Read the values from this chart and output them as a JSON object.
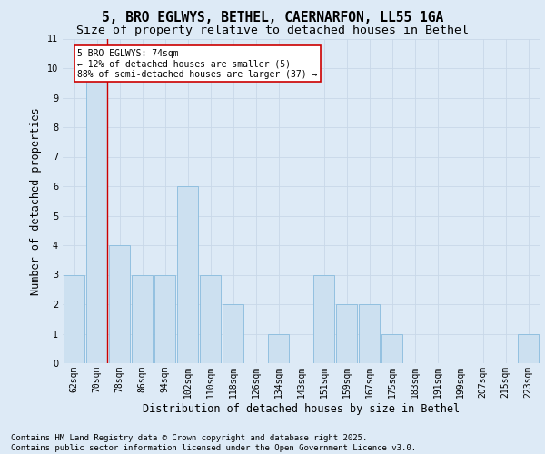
{
  "title_line1": "5, BRO EGLWYS, BETHEL, CAERNARFON, LL55 1GA",
  "title_line2": "Size of property relative to detached houses in Bethel",
  "xlabel": "Distribution of detached houses by size in Bethel",
  "ylabel": "Number of detached properties",
  "categories": [
    "62sqm",
    "70sqm",
    "78sqm",
    "86sqm",
    "94sqm",
    "102sqm",
    "110sqm",
    "118sqm",
    "126sqm",
    "134sqm",
    "143sqm",
    "151sqm",
    "159sqm",
    "167sqm",
    "175sqm",
    "183sqm",
    "191sqm",
    "199sqm",
    "207sqm",
    "215sqm",
    "223sqm"
  ],
  "values": [
    3,
    10,
    4,
    3,
    3,
    6,
    3,
    2,
    0,
    1,
    0,
    3,
    2,
    2,
    1,
    0,
    0,
    0,
    0,
    0,
    1
  ],
  "bar_color": "#cce0f0",
  "bar_edge_color": "#88bbdd",
  "grid_color": "#c8d8e8",
  "background_color": "#ddeaf6",
  "annotation_box_text": "5 BRO EGLWYS: 74sqm\n← 12% of detached houses are smaller (5)\n88% of semi-detached houses are larger (37) →",
  "annotation_box_color": "#ffffff",
  "annotation_box_edge_color": "#cc0000",
  "red_line_x": 1.45,
  "ylim": [
    0,
    11
  ],
  "yticks": [
    0,
    1,
    2,
    3,
    4,
    5,
    6,
    7,
    8,
    9,
    10,
    11
  ],
  "footer_text": "Contains HM Land Registry data © Crown copyright and database right 2025.\nContains public sector information licensed under the Open Government Licence v3.0.",
  "title_fontsize": 10.5,
  "subtitle_fontsize": 9.5,
  "axis_label_fontsize": 8.5,
  "tick_fontsize": 7,
  "footer_fontsize": 6.5,
  "annot_fontsize": 7
}
